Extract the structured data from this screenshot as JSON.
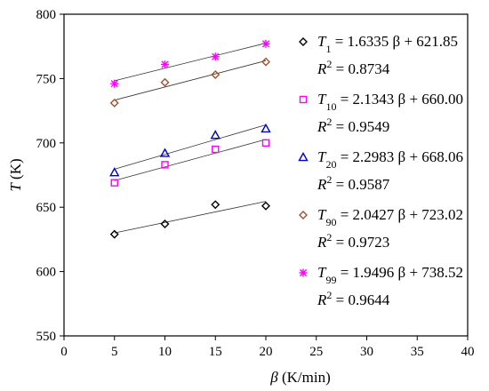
{
  "chart_data": {
    "type": "scatter",
    "xlabel": {
      "symbol": "β",
      "unit": "(K/min)"
    },
    "ylabel": {
      "symbol": "T",
      "unit": "(K)"
    },
    "xlim": [
      0,
      40
    ],
    "ylim": [
      550,
      800
    ],
    "xticks": [
      0,
      5,
      10,
      15,
      20,
      25,
      30,
      35,
      40
    ],
    "yticks": [
      550,
      600,
      650,
      700,
      750,
      800
    ],
    "grid": false,
    "legend_position": "right",
    "series": [
      {
        "name": "T1",
        "label_symbol": "T",
        "label_sub": "1",
        "marker": "diamond",
        "color": "#000000",
        "x": [
          5,
          10,
          15,
          20
        ],
        "y": [
          629,
          637,
          652,
          651
        ],
        "fit": {
          "slope": 1.6335,
          "intercept": 621.85
        },
        "equation": " = 1.6335 β + 621.85",
        "r2_label": "R",
        "r2_exp": "2",
        "r2_value": " = 0.8734"
      },
      {
        "name": "T10",
        "label_symbol": "T",
        "label_sub": "10",
        "marker": "square",
        "color": "#ff00ff",
        "x": [
          5,
          10,
          15,
          20
        ],
        "y": [
          669,
          683,
          695,
          700
        ],
        "fit": {
          "slope": 2.1343,
          "intercept": 660.0
        },
        "equation": " = 2.1343 β + 660.00",
        "r2_label": "R",
        "r2_exp": "2",
        "r2_value": " = 0.9549"
      },
      {
        "name": "T20",
        "label_symbol": "T",
        "label_sub": "20",
        "marker": "triangle",
        "color": "#0000cc",
        "x": [
          5,
          10,
          15,
          20
        ],
        "y": [
          677,
          692,
          706,
          711
        ],
        "fit": {
          "slope": 2.2983,
          "intercept": 668.06
        },
        "equation": " = 2.2983 β + 668.06",
        "r2_label": "R",
        "r2_exp": "2",
        "r2_value": " = 0.9587"
      },
      {
        "name": "T90",
        "label_symbol": "T",
        "label_sub": "90",
        "marker": "diamond",
        "color": "#a0522d",
        "x": [
          5,
          10,
          15,
          20
        ],
        "y": [
          731,
          747,
          753,
          763
        ],
        "fit": {
          "slope": 2.0427,
          "intercept": 723.02
        },
        "equation": " = 2.0427 β + 723.02",
        "r2_label": "R",
        "r2_exp": "2",
        "r2_value": " = 0.9723"
      },
      {
        "name": "T99",
        "label_symbol": "T",
        "label_sub": "99",
        "marker": "asterisk",
        "color": "#ff00ff",
        "x": [
          5,
          10,
          15,
          20
        ],
        "y": [
          746,
          761,
          767,
          777
        ],
        "fit": {
          "slope": 1.9496,
          "intercept": 738.52
        },
        "equation": " = 1.9496 β + 738.52",
        "r2_label": "R",
        "r2_exp": "2",
        "r2_value": " = 0.9644"
      }
    ]
  }
}
